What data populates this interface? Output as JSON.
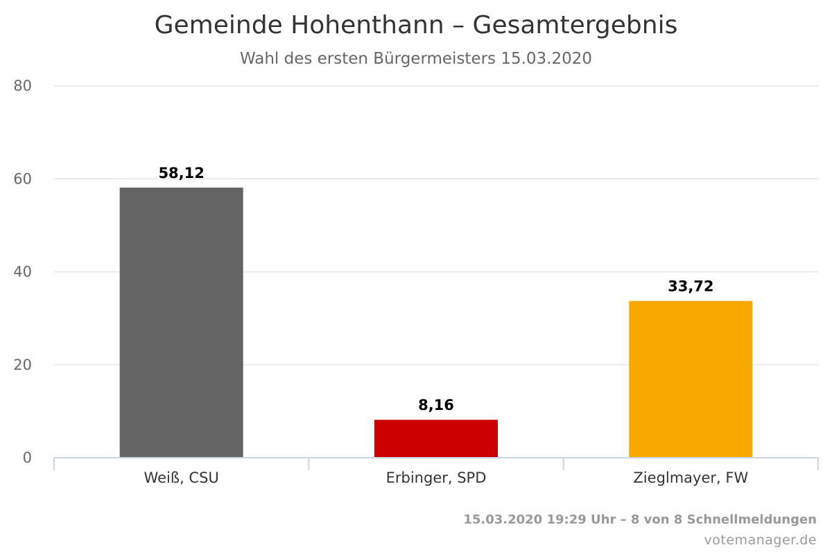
{
  "chart_data": {
    "type": "bar",
    "title": "Gemeinde Hohenthann – Gesamtergebnis",
    "subtitle": "Wahl des ersten Bürgermeisters 15.03.2020",
    "categories": [
      "Weiß, CSU",
      "Erbinger, SPD",
      "Zieglmayer, FW"
    ],
    "values": [
      58.12,
      8.16,
      33.72
    ],
    "data_labels": [
      "58,12",
      "8,16",
      "33,72"
    ],
    "colors": [
      "#646464",
      "#cc0000",
      "#f9a800"
    ],
    "ylim": [
      0,
      80
    ],
    "yticks": [
      0,
      20,
      40,
      60,
      80
    ],
    "grid": true,
    "legend": "none",
    "xlabel": "",
    "ylabel": ""
  },
  "footer": {
    "status": "15.03.2020 19:29 Uhr – 8 von 8 Schnellmeldungen",
    "credit": "votemanager.de"
  },
  "style": {
    "grid_color": "#e6e6e6",
    "axis_color": "#ccd6eb"
  }
}
